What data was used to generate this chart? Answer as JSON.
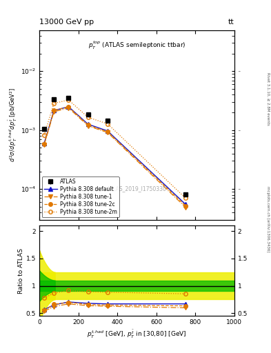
{
  "title_left": "13000 GeV pp",
  "title_right": "tt",
  "inner_title": "$p_T^{top}$ (ATLAS semileptonic ttbar)",
  "watermark": "ATLAS_2019_I1750330",
  "right_label_top": "Rivet 3.1.10, ≥ 2.8M events",
  "right_label_bot": "mcplots.cern.ch [arXiv:1306.3436]",
  "ylabel_main": "$d^2\\sigma / d p_T^{t,had} d p_T^{\\bar{t}}$ [pb/GeV$^2$]",
  "ylabel_ratio": "Ratio to ATLAS",
  "xlabel": "$p_T^{t,had}$ [GeV], $p_T^{\\bar{t}}$ in [30,80] [GeV]",
  "xlim": [
    0,
    1000
  ],
  "ylim_main": [
    3e-05,
    0.05
  ],
  "ylim_ratio": [
    0.45,
    2.1
  ],
  "x_pts": [
    25,
    75,
    150,
    250,
    350,
    750
  ],
  "atlas_y": [
    0.00105,
    0.0033,
    0.00355,
    0.00185,
    0.00145,
    8.2e-05
  ],
  "atlas_yerr_lo": [
    7e-05,
    0.00012,
    0.00012,
    8e-05,
    6e-05,
    5e-06
  ],
  "atlas_yerr_hi": [
    7e-05,
    0.00012,
    0.00012,
    8e-05,
    6e-05,
    5e-06
  ],
  "default_y": [
    0.0006,
    0.00215,
    0.0025,
    0.00126,
    0.00097,
    5.5e-05
  ],
  "tune1_y": [
    0.00056,
    0.00205,
    0.00238,
    0.00118,
    0.00091,
    4.9e-05
  ],
  "tune2c_y": [
    0.00058,
    0.00218,
    0.00248,
    0.00122,
    0.00094,
    5.2e-05
  ],
  "tune2m_y": [
    0.00082,
    0.00285,
    0.00325,
    0.00165,
    0.00128,
    7e-05
  ],
  "ratio_default": [
    0.565,
    0.653,
    0.705,
    0.68,
    0.67,
    0.67
  ],
  "ratio_tune1": [
    0.535,
    0.622,
    0.67,
    0.638,
    0.627,
    0.598
  ],
  "ratio_tune2c": [
    0.552,
    0.661,
    0.698,
    0.66,
    0.648,
    0.634
  ],
  "ratio_tune2m": [
    0.782,
    0.864,
    0.915,
    0.892,
    0.883,
    0.854
  ],
  "atlas_band_yellow_lo": 0.75,
  "atlas_band_yellow_hi": 1.25,
  "atlas_band_green_lo": 0.9,
  "atlas_band_green_hi": 1.1,
  "color_atlas": "#000000",
  "color_default": "#1111cc",
  "color_tunes": "#e07800",
  "color_band_yellow": "#eeee00",
  "color_band_green": "#00bb00"
}
